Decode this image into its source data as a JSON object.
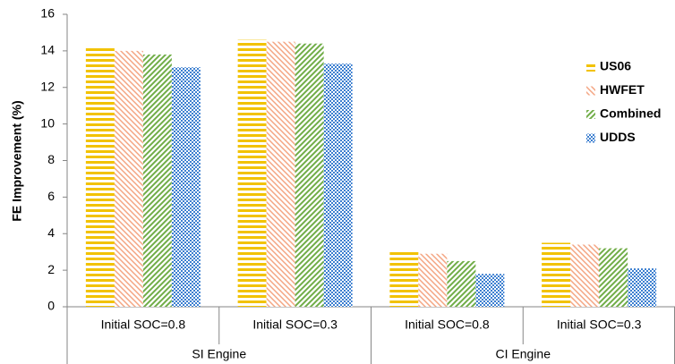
{
  "chart_data": {
    "type": "bar",
    "y_label": "FE Improvement (%)",
    "groups": [
      {
        "name": "SI Engine",
        "categories": [
          "Initial SOC=0.8",
          "Initial SOC=0.3"
        ]
      },
      {
        "name": "CI Engine",
        "categories": [
          "Initial SOC=0.8",
          "Initial SOC=0.3"
        ]
      }
    ],
    "series": [
      {
        "name": "US06",
        "color": "#f2c200",
        "pattern": "horizontal",
        "values": [
          14.2,
          14.6,
          3.0,
          3.5
        ]
      },
      {
        "name": "HWFET",
        "color": "#f4a582",
        "pattern": "diagonal-down",
        "values": [
          14.0,
          14.5,
          2.9,
          3.4
        ]
      },
      {
        "name": "Combined",
        "color": "#70ad47",
        "pattern": "diagonal-up",
        "values": [
          13.8,
          14.4,
          2.5,
          3.2
        ]
      },
      {
        "name": "UDDS",
        "color": "#3c7fd0",
        "pattern": "checker",
        "values": [
          13.1,
          13.3,
          1.8,
          2.1
        ]
      }
    ],
    "ylim": [
      0,
      16
    ],
    "yticks": [
      0,
      2,
      4,
      6,
      8,
      10,
      12,
      14,
      16
    ],
    "legend": "right"
  }
}
